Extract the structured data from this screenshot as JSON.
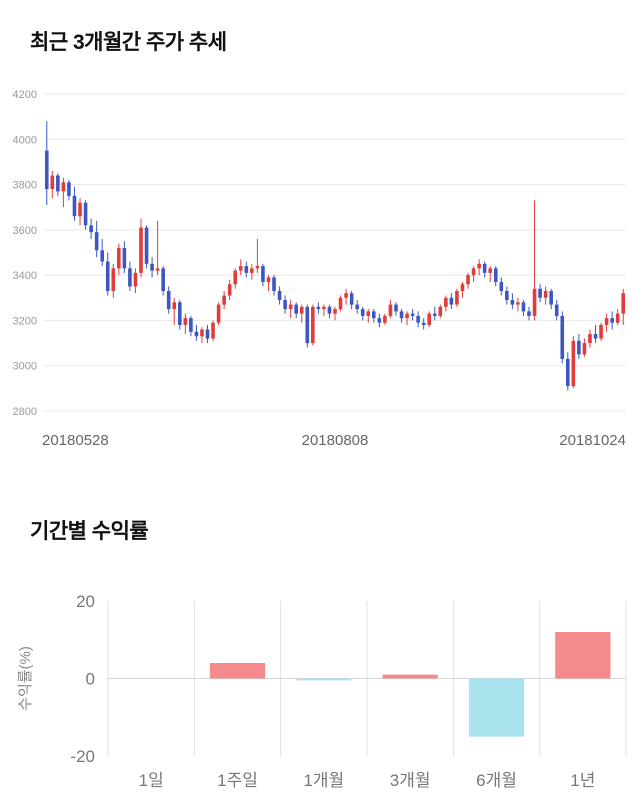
{
  "price_chart": {
    "title": "최근 3개월간 주가 추세"
  },
  "returns_chart": {
    "title": "기간별 수익률"
  },
  "chart_data": [
    {
      "type": "candlestick",
      "title": "최근 3개월간 주가 추세",
      "ylim": [
        2800,
        4200
      ],
      "yticks": [
        2800,
        3000,
        3200,
        3400,
        3600,
        3800,
        4000,
        4200
      ],
      "xticks": [
        "20180528",
        "20180808",
        "20181024"
      ],
      "up_color": "#e03c3c",
      "down_color": "#3d56c4",
      "grid_color": "#e8e8e8",
      "candles": [
        [
          3950,
          4080,
          3710,
          3780
        ],
        [
          3780,
          3860,
          3740,
          3840
        ],
        [
          3840,
          3850,
          3750,
          3770
        ],
        [
          3770,
          3830,
          3700,
          3810
        ],
        [
          3810,
          3820,
          3730,
          3750
        ],
        [
          3750,
          3790,
          3640,
          3660
        ],
        [
          3660,
          3740,
          3620,
          3720
        ],
        [
          3720,
          3730,
          3600,
          3620
        ],
        [
          3620,
          3650,
          3560,
          3590
        ],
        [
          3590,
          3640,
          3480,
          3510
        ],
        [
          3510,
          3560,
          3440,
          3460
        ],
        [
          3460,
          3500,
          3310,
          3330
        ],
        [
          3330,
          3450,
          3300,
          3430
        ],
        [
          3430,
          3540,
          3400,
          3520
        ],
        [
          3520,
          3550,
          3410,
          3430
        ],
        [
          3430,
          3460,
          3330,
          3350
        ],
        [
          3350,
          3430,
          3320,
          3410
        ],
        [
          3410,
          3650,
          3390,
          3610
        ],
        [
          3610,
          3620,
          3430,
          3450
        ],
        [
          3450,
          3480,
          3390,
          3420
        ],
        [
          3420,
          3640,
          3400,
          3430
        ],
        [
          3430,
          3440,
          3310,
          3330
        ],
        [
          3330,
          3350,
          3230,
          3250
        ],
        [
          3250,
          3300,
          3180,
          3280
        ],
        [
          3280,
          3290,
          3160,
          3180
        ],
        [
          3180,
          3230,
          3140,
          3210
        ],
        [
          3210,
          3220,
          3130,
          3150
        ],
        [
          3150,
          3180,
          3110,
          3130
        ],
        [
          3130,
          3170,
          3100,
          3160
        ],
        [
          3160,
          3180,
          3100,
          3120
        ],
        [
          3120,
          3200,
          3110,
          3190
        ],
        [
          3190,
          3280,
          3180,
          3270
        ],
        [
          3270,
          3330,
          3250,
          3310
        ],
        [
          3310,
          3380,
          3290,
          3360
        ],
        [
          3360,
          3430,
          3340,
          3420
        ],
        [
          3420,
          3470,
          3400,
          3440
        ],
        [
          3440,
          3460,
          3390,
          3410
        ],
        [
          3410,
          3450,
          3380,
          3430
        ],
        [
          3430,
          3560,
          3410,
          3440
        ],
        [
          3440,
          3450,
          3350,
          3370
        ],
        [
          3370,
          3400,
          3330,
          3390
        ],
        [
          3390,
          3400,
          3310,
          3330
        ],
        [
          3330,
          3350,
          3270,
          3290
        ],
        [
          3290,
          3310,
          3230,
          3250
        ],
        [
          3250,
          3290,
          3210,
          3270
        ],
        [
          3270,
          3280,
          3210,
          3230
        ],
        [
          3230,
          3270,
          3190,
          3260
        ],
        [
          3260,
          3270,
          3080,
          3100
        ],
        [
          3100,
          3270,
          3090,
          3260
        ],
        [
          3260,
          3280,
          3230,
          3250
        ],
        [
          3250,
          3270,
          3220,
          3260
        ],
        [
          3260,
          3270,
          3210,
          3230
        ],
        [
          3230,
          3260,
          3200,
          3250
        ],
        [
          3250,
          3310,
          3240,
          3300
        ],
        [
          3300,
          3340,
          3270,
          3320
        ],
        [
          3320,
          3330,
          3250,
          3270
        ],
        [
          3270,
          3290,
          3230,
          3250
        ],
        [
          3250,
          3260,
          3200,
          3220
        ],
        [
          3220,
          3250,
          3190,
          3240
        ],
        [
          3240,
          3250,
          3190,
          3210
        ],
        [
          3210,
          3230,
          3170,
          3190
        ],
        [
          3190,
          3230,
          3180,
          3220
        ],
        [
          3220,
          3290,
          3210,
          3270
        ],
        [
          3270,
          3280,
          3220,
          3240
        ],
        [
          3240,
          3250,
          3190,
          3210
        ],
        [
          3210,
          3240,
          3180,
          3230
        ],
        [
          3230,
          3250,
          3200,
          3220
        ],
        [
          3220,
          3240,
          3170,
          3190
        ],
        [
          3190,
          3210,
          3160,
          3180
        ],
        [
          3180,
          3240,
          3170,
          3230
        ],
        [
          3230,
          3260,
          3200,
          3220
        ],
        [
          3220,
          3270,
          3210,
          3260
        ],
        [
          3260,
          3310,
          3240,
          3300
        ],
        [
          3300,
          3320,
          3250,
          3270
        ],
        [
          3270,
          3340,
          3260,
          3330
        ],
        [
          3330,
          3370,
          3300,
          3360
        ],
        [
          3360,
          3410,
          3340,
          3400
        ],
        [
          3400,
          3440,
          3370,
          3430
        ],
        [
          3430,
          3470,
          3400,
          3450
        ],
        [
          3450,
          3460,
          3390,
          3410
        ],
        [
          3410,
          3440,
          3370,
          3430
        ],
        [
          3430,
          3440,
          3350,
          3370
        ],
        [
          3370,
          3390,
          3310,
          3330
        ],
        [
          3330,
          3350,
          3270,
          3290
        ],
        [
          3290,
          3320,
          3250,
          3270
        ],
        [
          3270,
          3300,
          3240,
          3280
        ],
        [
          3280,
          3290,
          3220,
          3240
        ],
        [
          3240,
          3260,
          3200,
          3220
        ],
        [
          3220,
          3730,
          3200,
          3340
        ],
        [
          3340,
          3360,
          3280,
          3300
        ],
        [
          3300,
          3350,
          3270,
          3330
        ],
        [
          3330,
          3340,
          3250,
          3270
        ],
        [
          3270,
          3290,
          3200,
          3220
        ],
        [
          3220,
          3240,
          3010,
          3030
        ],
        [
          3030,
          3060,
          2890,
          2910
        ],
        [
          2910,
          3130,
          2900,
          3110
        ],
        [
          3110,
          3140,
          3030,
          3050
        ],
        [
          3050,
          3120,
          3040,
          3100
        ],
        [
          3100,
          3160,
          3080,
          3140
        ],
        [
          3140,
          3180,
          3100,
          3120
        ],
        [
          3120,
          3190,
          3110,
          3180
        ],
        [
          3180,
          3230,
          3150,
          3210
        ],
        [
          3210,
          3240,
          3160,
          3190
        ],
        [
          3190,
          3250,
          3180,
          3230
        ],
        [
          3230,
          3340,
          3180,
          3320
        ]
      ]
    },
    {
      "type": "bar",
      "title": "기간별 수익률",
      "ylabel": "수익률(%)",
      "categories": [
        "1일",
        "1주일",
        "1개월",
        "3개월",
        "6개월",
        "1년"
      ],
      "values": [
        0,
        4,
        -0.5,
        1,
        -15,
        12
      ],
      "ylim": [
        -20,
        20
      ],
      "yticks": [
        20,
        0,
        -20
      ],
      "positive_color": "#f48a8b",
      "negative_color": "#a8e3ee",
      "grid_color": "#e2e2e2",
      "zero_line_color": "#d6d6d6"
    }
  ]
}
